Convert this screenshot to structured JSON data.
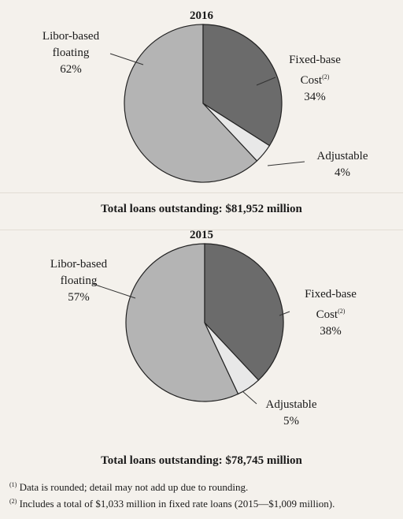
{
  "chart_data": [
    {
      "type": "pie",
      "title": "2016",
      "total_label": "Total loans outstanding: $81,952 million",
      "slices": [
        {
          "label_lines": [
            "Fixed-base",
            "Cost"
          ],
          "label_sup": "(2)",
          "pct_label": "34%",
          "value": 34,
          "color": "#6b6b6b"
        },
        {
          "label_lines": [
            "Adjustable"
          ],
          "label_sup": "",
          "pct_label": "4%",
          "value": 4,
          "color": "#e8e8e8"
        },
        {
          "label_lines": [
            "Libor-based",
            "floating"
          ],
          "label_sup": "",
          "pct_label": "62%",
          "value": 62,
          "color": "#b4b4b4"
        }
      ]
    },
    {
      "type": "pie",
      "title": "2015",
      "total_label": "Total loans outstanding: $78,745 million",
      "slices": [
        {
          "label_lines": [
            "Fixed-base",
            "Cost"
          ],
          "label_sup": "(2)",
          "pct_label": "38%",
          "value": 38,
          "color": "#6b6b6b"
        },
        {
          "label_lines": [
            "Adjustable"
          ],
          "label_sup": "",
          "pct_label": "5%",
          "value": 5,
          "color": "#e8e8e8"
        },
        {
          "label_lines": [
            "Libor-based",
            "floating"
          ],
          "label_sup": "",
          "pct_label": "57%",
          "value": 57,
          "color": "#b4b4b4"
        }
      ]
    }
  ],
  "footnotes": [
    {
      "marker": "(1)",
      "text": "Data is rounded; detail may not add up due to rounding."
    },
    {
      "marker": "(2)",
      "text": "Includes a total of $1,033 million in fixed rate loans (2015—$1,009 million)."
    }
  ]
}
